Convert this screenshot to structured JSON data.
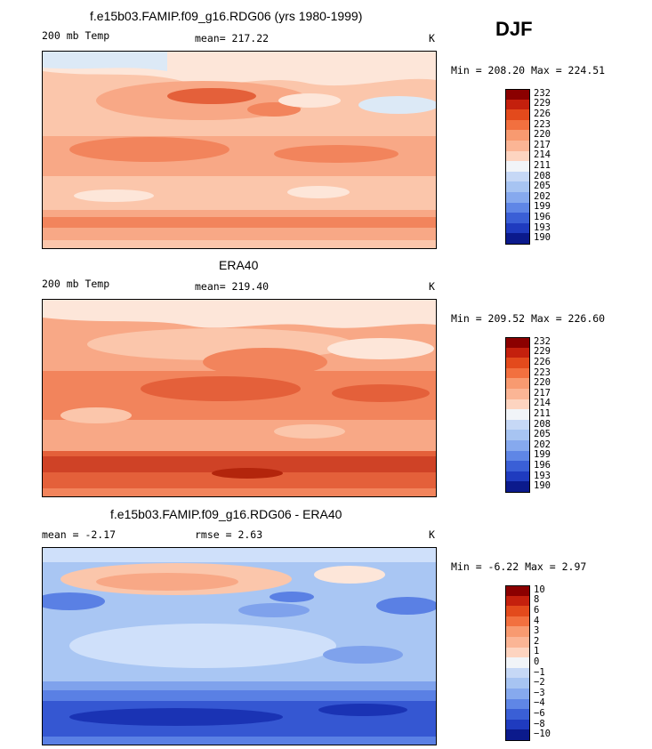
{
  "season": "DJF",
  "panels": [
    {
      "title": "f.e15b03.FAMIP.f09_g16.RDG06 (yrs 1980-1999)",
      "left_label": "200 mb Temp",
      "center_label": "mean= 217.22",
      "units": "K",
      "minmax": "Min = 208.20 Max = 224.51",
      "levels": [
        "232",
        "229",
        "226",
        "223",
        "220",
        "217",
        "214",
        "211",
        "208",
        "205",
        "202",
        "199",
        "196",
        "193",
        "190"
      ]
    },
    {
      "title": "ERA40",
      "left_label": "200 mb Temp",
      "center_label": "mean= 219.40",
      "units": "K",
      "minmax": "Min = 209.52 Max = 226.60",
      "levels": [
        "232",
        "229",
        "226",
        "223",
        "220",
        "217",
        "214",
        "211",
        "208",
        "205",
        "202",
        "199",
        "196",
        "193",
        "190"
      ]
    },
    {
      "title": "f.e15b03.FAMIP.f09_g16.RDG06 - ERA40",
      "left_label": "mean =  -2.17",
      "center_label": "rmse =   2.63",
      "units": "K",
      "minmax": "Min =  -6.22 Max =   2.97",
      "levels": [
        "10",
        "8",
        "6",
        "4",
        "3",
        "2",
        "1",
        "0",
        "−1",
        "−2",
        "−3",
        "−4",
        "−6",
        "−8",
        "−10"
      ]
    }
  ],
  "colorbar_colors": [
    "#8b0000",
    "#c4200d",
    "#e34a1c",
    "#f2703f",
    "#f89a70",
    "#fbb595",
    "#fdd4c0",
    "#f1f4f8",
    "#c6d8f6",
    "#a7c4f2",
    "#86a9ee",
    "#5f86e6",
    "#3a5fd6",
    "#1f3bbf",
    "#0b1a8c"
  ],
  "map_colors": {
    "polar_cold": "#dce9f6",
    "pale": "#fde6d9",
    "light_orange": "#fbc6ab",
    "mid_orange": "#f8a886",
    "orange": "#f2845c",
    "deep_orange": "#e4603a",
    "red": "#cf4226",
    "pale_blue": "#cfe0fa",
    "light_blue": "#a9c6f3",
    "mid_blue": "#7fa2ec",
    "blue": "#5a80e4",
    "deep_blue": "#3557d2",
    "navy": "#1a33b4"
  }
}
